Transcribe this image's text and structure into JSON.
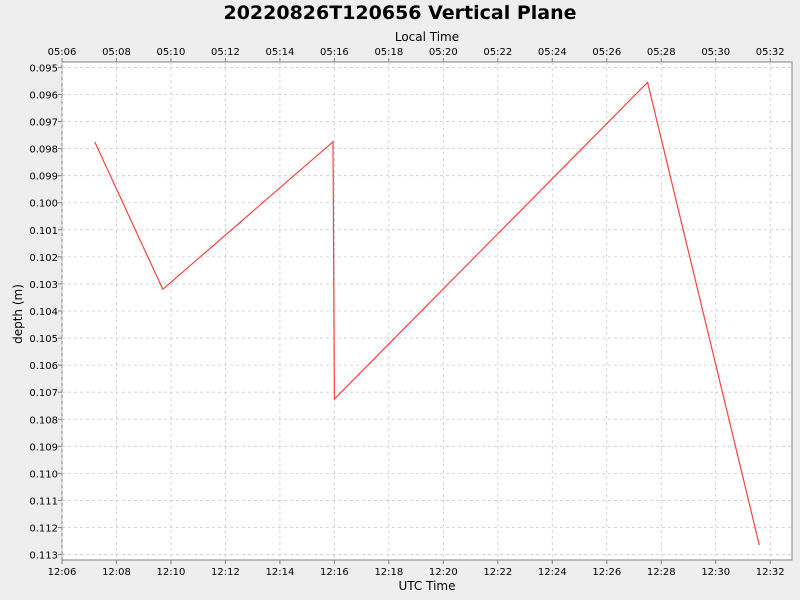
{
  "chart_data": {
    "type": "line",
    "title": "20220826T120656 Vertical Plane",
    "xlabel": "UTC Time",
    "x2label": "Local Time",
    "ylabel": "depth (m)",
    "x_ticks": [
      "12:06",
      "12:08",
      "12:10",
      "12:12",
      "12:14",
      "12:16",
      "12:18",
      "12:20",
      "12:22",
      "12:24",
      "12:26",
      "12:28",
      "12:30",
      "12:32"
    ],
    "x2_ticks": [
      "05:06",
      "05:08",
      "05:10",
      "05:12",
      "05:14",
      "05:16",
      "05:18",
      "05:20",
      "05:22",
      "05:24",
      "05:26",
      "05:28",
      "05:30",
      "05:32"
    ],
    "y_ticks": [
      "0.095",
      "0.096",
      "0.097",
      "0.098",
      "0.099",
      "0.100",
      "0.101",
      "0.102",
      "0.103",
      "0.104",
      "0.105",
      "0.106",
      "0.107",
      "0.108",
      "0.109",
      "0.110",
      "0.111",
      "0.112",
      "0.113"
    ],
    "xlim": [
      "12:06:00",
      "12:32:48"
    ],
    "ylim": [
      0.1132,
      0.0948
    ],
    "y_inverted": true,
    "grid": true,
    "series": [
      {
        "color": "#ff4040",
        "points": [
          {
            "x": "12:07:12",
            "y": 0.09775
          },
          {
            "x": "12:09:42",
            "y": 0.1032
          },
          {
            "x": "12:15:57",
            "y": 0.09775
          },
          {
            "x": "12:16:00",
            "y": 0.10725
          },
          {
            "x": "12:27:30",
            "y": 0.09555
          },
          {
            "x": "12:31:36",
            "y": 0.11265
          }
        ]
      }
    ]
  }
}
